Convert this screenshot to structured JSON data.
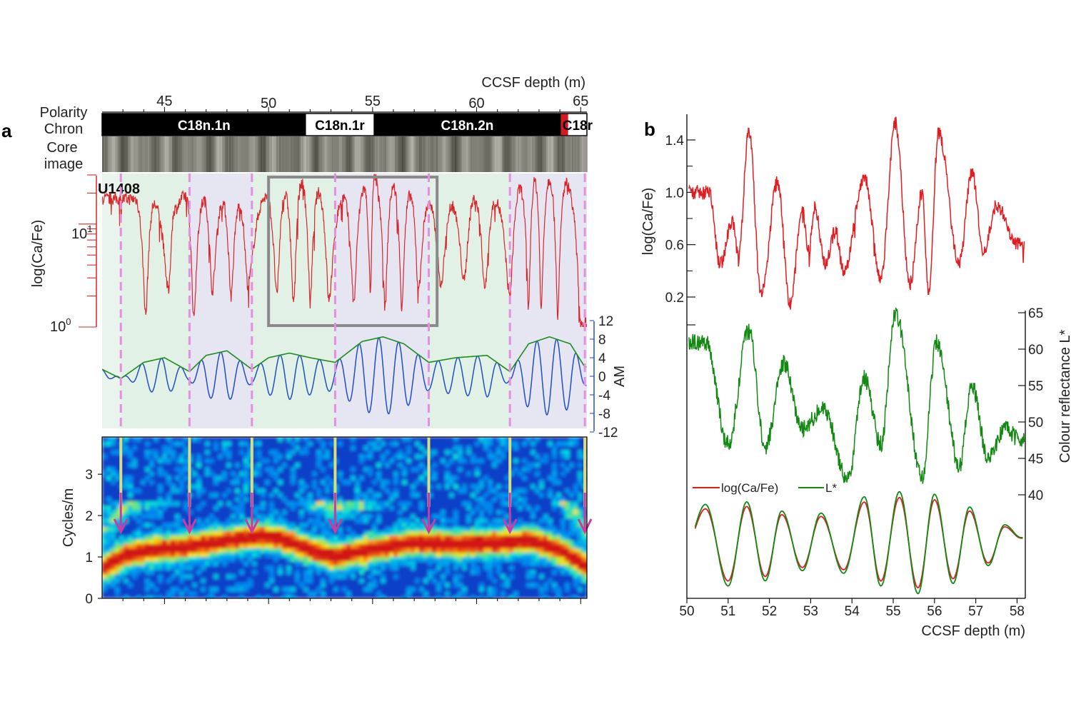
{
  "panel_a": {
    "letter": "a",
    "top_axis": {
      "label": "CCSF depth (m)",
      "ticks": [
        45,
        50,
        55,
        60,
        65
      ],
      "range": [
        42,
        65.3
      ]
    },
    "track_labels": {
      "polarity": "Polarity",
      "chron": "Chron",
      "core": "Core",
      "image": "image"
    },
    "chrons": [
      {
        "name": "C18n.1n",
        "start": 42.0,
        "end": 51.8,
        "color": "#000000",
        "text_color": "#ffffff"
      },
      {
        "name": "C18n.1r",
        "start": 51.8,
        "end": 55.05,
        "color": "#ffffff",
        "text_color": "#000000"
      },
      {
        "name": "C18n.2n",
        "start": 55.05,
        "end": 64.05,
        "color": "#000000",
        "text_color": "#ffffff"
      },
      {
        "name": "",
        "start": 64.05,
        "end": 64.4,
        "color": "#d71920",
        "text_color": "#ffffff"
      },
      {
        "name": "C18r",
        "start": 64.4,
        "end": 65.3,
        "color": "#ffffff",
        "text_color": "#000000"
      }
    ],
    "site": "U1408",
    "bands": [
      {
        "start": 42.0,
        "end": 42.9,
        "color": "#e8f4ec"
      },
      {
        "start": 42.9,
        "end": 46.2,
        "color": "#e2f1e6"
      },
      {
        "start": 46.2,
        "end": 49.2,
        "color": "#e5e6f2"
      },
      {
        "start": 49.2,
        "end": 53.2,
        "color": "#e2f1e6"
      },
      {
        "start": 53.2,
        "end": 57.7,
        "color": "#e5e6f2"
      },
      {
        "start": 57.7,
        "end": 61.6,
        "color": "#e2f1e6"
      },
      {
        "start": 61.6,
        "end": 65.3,
        "color": "#e5e6f2"
      }
    ],
    "boundaries": [
      42.9,
      46.2,
      49.2,
      53.2,
      57.7,
      61.6,
      65.2
    ],
    "highlight_box": [
      50.0,
      58.1
    ],
    "log_axis": {
      "label": "log(Ca/Fe)",
      "tick_10": "10",
      "tick_10_exp": "1",
      "tick_1": "10",
      "tick_1_exp": "0"
    },
    "am_axis": {
      "label": "AM",
      "ticks": [
        12,
        8,
        4,
        0,
        -4,
        -8,
        -12
      ]
    },
    "spectro_axis": {
      "label": "Cycles/m",
      "ticks": [
        0,
        1,
        2,
        3
      ]
    },
    "arrows": [
      42.9,
      46.2,
      49.2,
      53.2,
      57.7,
      61.6,
      65.2
    ]
  },
  "panel_b": {
    "letter": "b",
    "x_axis": {
      "label": "CCSF depth (m)",
      "ticks": [
        50,
        51,
        52,
        53,
        54,
        55,
        56,
        57,
        58
      ],
      "range": [
        50.0,
        58.2
      ]
    },
    "left_axis": {
      "label": "log(Ca/Fe)",
      "ticks": [
        "0.2",
        "0.6",
        "1.0",
        "1.4"
      ]
    },
    "right_axis": {
      "label": "Colour reflectance L*",
      "ticks": [
        40,
        45,
        50,
        55,
        60,
        65
      ]
    },
    "legend": [
      {
        "name": "log(Ca/Fe)",
        "color": "#e11d22"
      },
      {
        "name": "L*",
        "color": "#128a12"
      }
    ]
  },
  "chart_data": [
    {
      "type": "line",
      "panel": "a",
      "xlabel": "CCSF depth (m)",
      "xlim": [
        42,
        65.3
      ],
      "ylabel": "log(Ca/Fe)",
      "y_scale": "log",
      "ylim": [
        1,
        30
      ],
      "colors": {
        "log_ca_fe": "#d9262b",
        "filter": "#1f4fc4",
        "envelope": "#1e8c1e"
      },
      "peaks": [
        [
          43.6,
          17.5
        ],
        [
          44.5,
          15.5
        ],
        [
          45.5,
          14.0
        ],
        [
          46.0,
          19.0
        ],
        [
          46.9,
          17.0
        ],
        [
          47.8,
          16.0
        ],
        [
          48.6,
          15.0
        ],
        [
          49.9,
          18.5
        ],
        [
          50.8,
          19.0
        ],
        [
          51.6,
          25.0
        ],
        [
          52.4,
          20.0
        ],
        [
          53.6,
          18.0
        ],
        [
          54.6,
          22.0
        ],
        [
          55.1,
          28.0
        ],
        [
          56.0,
          23.0
        ],
        [
          56.8,
          19.0
        ],
        [
          57.7,
          15.5
        ],
        [
          58.8,
          15.0
        ],
        [
          59.9,
          17.5
        ],
        [
          60.9,
          16.5
        ],
        [
          62.1,
          22.0
        ],
        [
          62.8,
          26.0
        ],
        [
          63.5,
          27.0
        ],
        [
          64.3,
          25.0
        ]
      ],
      "troughs": [
        [
          44.1,
          1.3
        ],
        [
          45.2,
          2.2
        ],
        [
          46.4,
          1.2
        ],
        [
          47.3,
          2.2
        ],
        [
          48.2,
          2.0
        ],
        [
          49.0,
          2.6
        ],
        [
          50.4,
          2.0
        ],
        [
          51.2,
          1.6
        ],
        [
          52.0,
          1.7
        ],
        [
          52.9,
          1.8
        ],
        [
          54.1,
          1.7
        ],
        [
          54.9,
          2.0
        ],
        [
          55.6,
          1.5
        ],
        [
          56.4,
          1.6
        ],
        [
          57.2,
          2.2
        ],
        [
          58.3,
          2.5
        ],
        [
          59.4,
          2.8
        ],
        [
          60.4,
          2.4
        ],
        [
          61.6,
          1.9
        ],
        [
          62.5,
          1.5
        ],
        [
          63.1,
          1.4
        ],
        [
          63.9,
          1.3
        ],
        [
          65.0,
          1.1
        ]
      ],
      "am_envelope": [
        [
          42.0,
          1.5
        ],
        [
          42.9,
          -0.5
        ],
        [
          44.0,
          3.0
        ],
        [
          45.0,
          4.0
        ],
        [
          46.2,
          1.0
        ],
        [
          47.0,
          4.5
        ],
        [
          48.0,
          5.5
        ],
        [
          49.2,
          1.5
        ],
        [
          50.0,
          4.0
        ],
        [
          51.0,
          5.0
        ],
        [
          52.0,
          4.0
        ],
        [
          53.2,
          3.0
        ],
        [
          54.5,
          7.5
        ],
        [
          55.5,
          8.5
        ],
        [
          56.5,
          7.0
        ],
        [
          57.7,
          3.0
        ],
        [
          59.0,
          4.0
        ],
        [
          60.5,
          4.5
        ],
        [
          61.6,
          1.0
        ],
        [
          62.5,
          7.0
        ],
        [
          63.5,
          8.5
        ],
        [
          64.5,
          7.0
        ],
        [
          65.2,
          2.0
        ]
      ],
      "filter_period_m": 0.95
    },
    {
      "type": "heatmap",
      "panel": "a",
      "xlabel": "CCSF depth (m)",
      "ylabel": "Cycles/m",
      "ylim": [
        0,
        4
      ],
      "ridge": [
        [
          42.0,
          0.8
        ],
        [
          43.0,
          1.1
        ],
        [
          44.0,
          1.2
        ],
        [
          46.0,
          1.3
        ],
        [
          48.0,
          1.45
        ],
        [
          49.5,
          1.55
        ],
        [
          50.5,
          1.5
        ],
        [
          51.5,
          1.3
        ],
        [
          53.0,
          1.05
        ],
        [
          55.0,
          1.25
        ],
        [
          57.0,
          1.4
        ],
        [
          59.0,
          1.35
        ],
        [
          61.0,
          1.4
        ],
        [
          62.5,
          1.45
        ],
        [
          64.0,
          1.2
        ],
        [
          65.2,
          0.8
        ]
      ],
      "arrow_color": "#cc3ba0",
      "line_color": "#d9dd80"
    },
    {
      "type": "line",
      "panel": "b",
      "xlabel": "CCSF depth (m)",
      "xlim": [
        50.0,
        58.2
      ],
      "series": [
        {
          "name": "log(Ca/Fe)",
          "color": "#e11d22",
          "peaks": [
            [
              50.55,
              1.0
            ],
            [
              51.1,
              0.78
            ],
            [
              51.5,
              1.48
            ],
            [
              52.2,
              1.08
            ],
            [
              52.8,
              0.85
            ],
            [
              53.1,
              0.88
            ],
            [
              53.6,
              0.7
            ],
            [
              54.3,
              1.12
            ],
            [
              55.05,
              1.53
            ],
            [
              55.7,
              1.0
            ],
            [
              56.1,
              1.45
            ],
            [
              56.9,
              1.15
            ],
            [
              57.5,
              0.9
            ]
          ],
          "troughs": [
            [
              50.8,
              0.45
            ],
            [
              51.25,
              0.5
            ],
            [
              51.8,
              0.22
            ],
            [
              52.5,
              0.15
            ],
            [
              52.95,
              0.55
            ],
            [
              53.35,
              0.45
            ],
            [
              53.8,
              0.4
            ],
            [
              54.7,
              0.35
            ],
            [
              55.4,
              0.3
            ],
            [
              55.85,
              0.25
            ],
            [
              56.6,
              0.45
            ],
            [
              57.2,
              0.55
            ],
            [
              58.0,
              0.6
            ]
          ]
        },
        {
          "name": "L*",
          "color": "#128a12",
          "peaks": [
            [
              50.45,
              61.0
            ],
            [
              51.5,
              62.5
            ],
            [
              52.35,
              58.0
            ],
            [
              53.3,
              52.0
            ],
            [
              54.3,
              56.0
            ],
            [
              55.05,
              65.0
            ],
            [
              56.05,
              61.0
            ],
            [
              56.9,
              55.0
            ],
            [
              57.7,
              49.0
            ]
          ],
          "troughs": [
            [
              51.0,
              47.0
            ],
            [
              51.9,
              46.5
            ],
            [
              52.8,
              49.0
            ],
            [
              53.9,
              42.0
            ],
            [
              54.7,
              47.0
            ],
            [
              55.7,
              42.5
            ],
            [
              56.6,
              44.0
            ],
            [
              57.3,
              45.0
            ],
            [
              58.1,
              47.5
            ]
          ]
        }
      ],
      "filtered": {
        "series": [
          "log(Ca/Fe)",
          "L*"
        ],
        "peaks": [
          [
            50.45,
            0.75
          ],
          [
            51.45,
            0.8
          ],
          [
            52.3,
            0.62
          ],
          [
            53.25,
            0.58
          ],
          [
            54.3,
            0.9
          ],
          [
            55.15,
            1.0
          ],
          [
            56.0,
            0.95
          ],
          [
            56.85,
            0.7
          ],
          [
            57.7,
            0.35
          ]
        ],
        "troughs": [
          [
            50.0,
            0.0
          ],
          [
            51.0,
            -0.85
          ],
          [
            51.9,
            -0.75
          ],
          [
            52.8,
            -0.55
          ],
          [
            53.8,
            -0.6
          ],
          [
            54.7,
            -0.85
          ],
          [
            55.6,
            -1.0
          ],
          [
            56.45,
            -0.8
          ],
          [
            57.3,
            -0.45
          ],
          [
            58.1,
            0.1
          ]
        ]
      }
    }
  ]
}
